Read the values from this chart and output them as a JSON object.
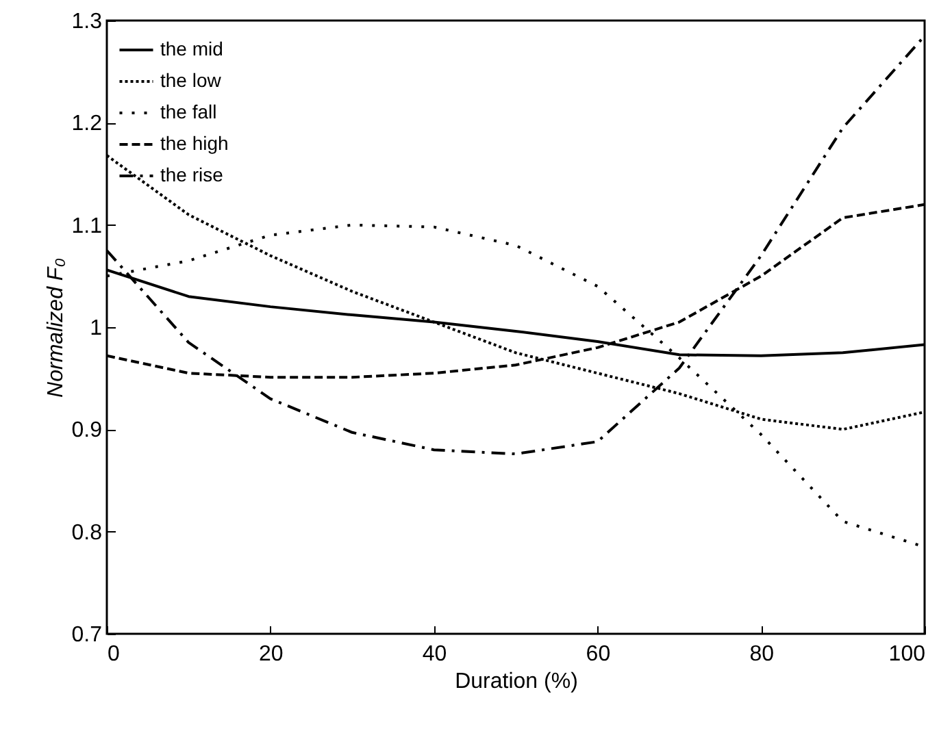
{
  "chart_data": {
    "type": "line",
    "xlabel": "Duration (%)",
    "ylabel": "Normalized F₀",
    "x": [
      0,
      10,
      20,
      30,
      40,
      50,
      60,
      70,
      80,
      90,
      100
    ],
    "xlim": [
      0,
      100
    ],
    "xticks": [
      0,
      20,
      40,
      60,
      80,
      100
    ],
    "ylim": [
      0.7,
      1.3
    ],
    "yticks": [
      0.7,
      0.8,
      0.9,
      1,
      1.1,
      1.2,
      1.3
    ],
    "grid": false,
    "legend": "top left",
    "series": [
      {
        "name": "the mid",
        "color": "#000000",
        "line_style": "solid",
        "values": [
          1.056,
          1.03,
          1.02,
          1.012,
          1.005,
          0.996,
          0.986,
          0.973,
          0.972,
          0.975,
          0.983
        ]
      },
      {
        "name": "the low",
        "color": "#000000",
        "line_style": "dotted",
        "values": [
          1.168,
          1.11,
          1.07,
          1.035,
          1.005,
          0.975,
          0.955,
          0.935,
          0.91,
          0.9,
          0.917
        ]
      },
      {
        "name": "the fall",
        "color": "#000000",
        "line_style": "loosely dotted",
        "values": [
          1.05,
          1.065,
          1.09,
          1.1,
          1.098,
          1.08,
          1.04,
          0.97,
          0.895,
          0.81,
          0.785
        ]
      },
      {
        "name": "the high",
        "color": "#000000",
        "line_style": "dashed",
        "values": [
          0.972,
          0.955,
          0.951,
          0.951,
          0.955,
          0.963,
          0.98,
          1.005,
          1.05,
          1.107,
          1.12
        ]
      },
      {
        "name": "the rise",
        "color": "#000000",
        "line_style": "dashdot",
        "values": [
          1.075,
          0.985,
          0.93,
          0.897,
          0.88,
          0.876,
          0.888,
          0.96,
          1.07,
          1.195,
          1.285
        ]
      }
    ]
  }
}
